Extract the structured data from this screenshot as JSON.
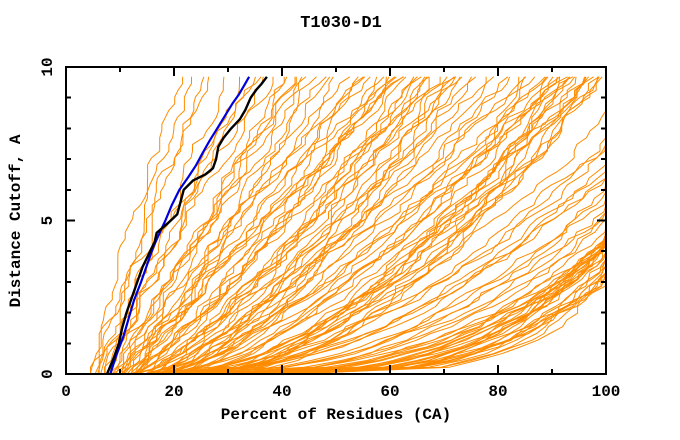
{
  "chart_data": {
    "type": "line",
    "title": "T1030-D1",
    "xlabel": "Percent of Residues (CA)",
    "ylabel": "Distance Cutoff, A",
    "xlim": [
      0,
      100
    ],
    "ylim": [
      0,
      10
    ],
    "x_major_ticks": [
      0,
      20,
      40,
      60,
      80,
      100
    ],
    "x_minor_ticks": [
      10,
      30,
      50,
      70,
      90
    ],
    "y_major_ticks": [
      0,
      5,
      10
    ],
    "y_minor_ticks": [
      1,
      2,
      3,
      4,
      6,
      7,
      8,
      9
    ],
    "grid": false,
    "legend": null,
    "frame_color": "#000000",
    "series_colors": {
      "models": "#ff8c00",
      "model_black": "#000000",
      "model_blue": "#0000dd"
    },
    "curve_y_top": 9.68,
    "black_curve": [
      [
        7.6,
        0
      ],
      [
        8.8,
        0.5
      ],
      [
        9.8,
        1.0
      ],
      [
        10.4,
        1.5
      ],
      [
        11.2,
        2.0
      ],
      [
        12.2,
        2.5
      ],
      [
        13.2,
        3.0
      ],
      [
        14.2,
        3.5
      ],
      [
        15.6,
        4.0
      ],
      [
        16.4,
        4.3
      ],
      [
        16.8,
        4.6
      ],
      [
        18.8,
        4.9
      ],
      [
        20.6,
        5.2
      ],
      [
        21.2,
        5.6
      ],
      [
        21.8,
        6.0
      ],
      [
        23.5,
        6.3
      ],
      [
        25.8,
        6.5
      ],
      [
        27.2,
        6.7
      ],
      [
        27.8,
        7.0
      ],
      [
        28.2,
        7.4
      ],
      [
        29.2,
        7.7
      ],
      [
        30.6,
        8.0
      ],
      [
        32.2,
        8.3
      ],
      [
        33.2,
        8.6
      ],
      [
        34.2,
        9.0
      ],
      [
        35.2,
        9.25
      ],
      [
        36.2,
        9.45
      ],
      [
        37.2,
        9.68
      ]
    ],
    "blue_curve": [
      [
        8.2,
        0
      ],
      [
        9.3,
        0.6
      ],
      [
        10.6,
        1.2
      ],
      [
        11.6,
        1.8
      ],
      [
        12.6,
        2.4
      ],
      [
        13.9,
        3.0
      ],
      [
        15.1,
        3.6
      ],
      [
        16.1,
        4.1
      ],
      [
        17.1,
        4.5
      ],
      [
        18.4,
        5.0
      ],
      [
        19.6,
        5.5
      ],
      [
        21.0,
        6.0
      ],
      [
        22.6,
        6.4
      ],
      [
        24.1,
        6.8
      ],
      [
        25.3,
        7.2
      ],
      [
        26.6,
        7.6
      ],
      [
        28.0,
        8.0
      ],
      [
        29.4,
        8.4
      ],
      [
        30.8,
        8.8
      ],
      [
        32.0,
        9.1
      ],
      [
        33.0,
        9.4
      ],
      [
        33.9,
        9.68
      ]
    ],
    "orange_params_format": [
      "x_at_y0",
      "x_at_ytop_unclamped",
      "shape_exponent",
      "noise_seed"
    ],
    "orange_curve_params": [
      [
        4.5,
        21,
        1.15,
        11
      ],
      [
        5,
        24,
        1.05,
        12
      ],
      [
        6,
        27,
        1.2,
        13
      ],
      [
        5.5,
        30,
        0.95,
        14
      ],
      [
        7,
        26,
        1.1,
        15
      ],
      [
        8,
        32,
        1.0,
        16
      ],
      [
        6,
        34,
        1.1,
        21
      ],
      [
        7,
        36,
        1.0,
        22
      ],
      [
        8,
        38,
        1.15,
        23
      ],
      [
        9,
        40,
        0.95,
        24
      ],
      [
        10,
        42,
        1.05,
        25
      ],
      [
        8.5,
        44,
        1.1,
        26
      ],
      [
        11,
        46,
        0.9,
        27
      ],
      [
        12,
        48,
        1.0,
        28
      ],
      [
        9,
        37,
        1.2,
        29
      ],
      [
        10,
        45,
        1.05,
        30
      ],
      [
        7.5,
        41,
        0.95,
        31
      ],
      [
        11.5,
        43,
        1.1,
        32
      ],
      [
        12.5,
        47,
        1.0,
        33
      ],
      [
        13,
        49,
        0.9,
        34
      ],
      [
        9,
        52,
        0.9,
        41
      ],
      [
        10,
        55,
        0.85,
        42
      ],
      [
        11,
        58,
        0.95,
        43
      ],
      [
        12,
        60,
        0.8,
        44
      ],
      [
        13,
        62,
        0.9,
        45
      ],
      [
        14,
        65,
        0.75,
        46
      ],
      [
        15,
        68,
        0.85,
        47
      ],
      [
        16,
        70,
        0.9,
        48
      ],
      [
        17,
        72,
        0.8,
        49
      ],
      [
        18,
        75,
        0.7,
        50
      ],
      [
        10,
        62,
        1.0,
        51
      ],
      [
        12,
        66,
        0.9,
        52
      ],
      [
        14,
        70,
        0.8,
        53
      ],
      [
        16,
        74,
        0.75,
        54
      ],
      [
        18,
        60,
        0.95,
        55
      ],
      [
        20,
        64,
        0.85,
        56
      ],
      [
        22,
        68,
        0.8,
        57
      ],
      [
        13,
        55,
        1.05,
        58
      ],
      [
        15,
        58,
        0.95,
        59
      ],
      [
        17,
        63,
        0.85,
        60
      ],
      [
        19,
        67,
        0.75,
        61
      ],
      [
        21,
        71,
        0.7,
        62
      ],
      [
        11,
        53,
        1.1,
        63
      ],
      [
        12,
        57,
        1.0,
        64
      ],
      [
        14,
        61,
        0.9,
        65
      ],
      [
        16,
        66,
        0.8,
        66
      ],
      [
        18,
        71,
        0.72,
        67
      ],
      [
        20,
        75,
        0.68,
        68
      ],
      [
        22,
        73,
        0.75,
        69
      ],
      [
        13,
        59,
        0.88,
        70
      ],
      [
        12,
        78,
        0.8,
        81
      ],
      [
        14,
        80,
        0.75,
        82
      ],
      [
        16,
        82,
        0.7,
        83
      ],
      [
        18,
        84,
        0.72,
        84
      ],
      [
        20,
        86,
        0.68,
        85
      ],
      [
        22,
        88,
        0.65,
        86
      ],
      [
        24,
        90,
        0.7,
        87
      ],
      [
        26,
        92,
        0.6,
        88
      ],
      [
        28,
        94,
        0.62,
        89
      ],
      [
        30,
        96,
        0.58,
        90
      ],
      [
        32,
        98,
        0.6,
        91
      ],
      [
        15,
        85,
        0.78,
        92
      ],
      [
        17,
        88,
        0.7,
        93
      ],
      [
        19,
        91,
        0.65,
        94
      ],
      [
        21,
        94,
        0.6,
        95
      ],
      [
        23,
        97,
        0.62,
        96
      ],
      [
        25,
        99,
        0.58,
        97
      ],
      [
        27,
        96,
        0.64,
        98
      ],
      [
        29,
        93,
        0.66,
        99
      ],
      [
        31,
        90,
        0.7,
        100
      ],
      [
        13,
        83,
        0.75,
        101
      ],
      [
        16,
        87,
        0.68,
        102
      ],
      [
        19,
        90,
        0.64,
        103
      ],
      [
        22,
        93,
        0.6,
        104
      ],
      [
        25,
        96,
        0.58,
        105
      ],
      [
        28,
        99,
        0.55,
        106
      ],
      [
        14,
        92,
        0.7,
        107
      ],
      [
        18,
        95,
        0.62,
        108
      ],
      [
        24,
        98,
        0.57,
        109
      ],
      [
        20,
        100,
        0.6,
        110
      ],
      [
        15,
        108,
        0.55,
        121
      ],
      [
        18,
        112,
        0.5,
        122
      ],
      [
        21,
        116,
        0.52,
        123
      ],
      [
        24,
        120,
        0.48,
        124
      ],
      [
        27,
        124,
        0.45,
        125
      ],
      [
        30,
        128,
        0.42,
        126
      ],
      [
        33,
        126,
        0.4,
        127
      ],
      [
        36,
        124,
        0.38,
        128
      ],
      [
        39,
        122,
        0.36,
        129
      ],
      [
        42,
        120,
        0.35,
        130
      ],
      [
        16,
        110,
        0.5,
        131
      ],
      [
        19,
        115,
        0.48,
        132
      ],
      [
        22,
        119,
        0.45,
        133
      ],
      [
        25,
        123,
        0.44,
        134
      ],
      [
        28,
        127,
        0.42,
        135
      ],
      [
        31,
        125,
        0.4,
        136
      ],
      [
        34,
        123,
        0.38,
        137
      ],
      [
        37,
        121,
        0.36,
        138
      ],
      [
        40,
        119,
        0.35,
        139
      ],
      [
        17,
        113,
        0.52,
        140
      ],
      [
        20,
        117,
        0.48,
        141
      ],
      [
        23,
        121,
        0.46,
        142
      ],
      [
        26,
        125,
        0.43,
        143
      ],
      [
        29,
        129,
        0.41,
        144
      ],
      [
        32,
        127,
        0.39,
        145
      ],
      [
        35,
        125,
        0.37,
        146
      ],
      [
        38,
        123,
        0.36,
        147
      ],
      [
        41,
        121,
        0.34,
        148
      ],
      [
        18,
        118,
        0.5,
        149
      ],
      [
        22,
        124,
        0.45,
        150
      ],
      [
        26,
        130,
        0.42,
        151
      ],
      [
        30,
        128,
        0.4,
        152
      ],
      [
        34,
        126,
        0.37,
        153
      ],
      [
        38,
        124,
        0.35,
        154
      ],
      [
        42,
        122,
        0.33,
        155
      ],
      [
        30,
        128,
        0.3,
        161
      ],
      [
        33,
        126,
        0.29,
        162
      ],
      [
        36,
        124,
        0.28,
        163
      ],
      [
        39,
        122,
        0.27,
        164
      ],
      [
        42,
        120,
        0.26,
        165
      ],
      [
        28,
        130,
        0.3,
        166
      ],
      [
        31,
        125,
        0.29,
        167
      ],
      [
        34,
        121,
        0.28,
        168
      ],
      [
        37,
        119,
        0.27,
        169
      ],
      [
        40,
        117,
        0.26,
        170
      ]
    ]
  }
}
